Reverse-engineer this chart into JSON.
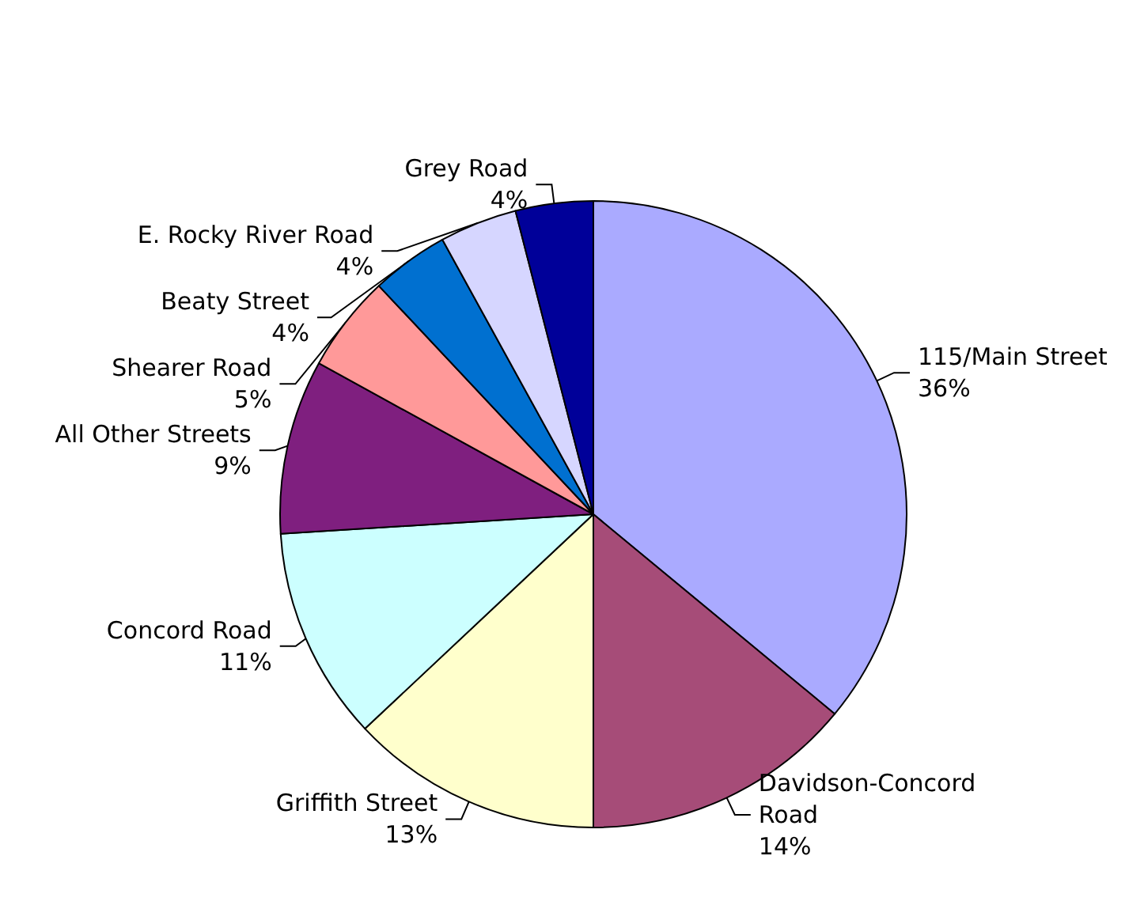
{
  "chart_data": {
    "type": "pie",
    "categories": [
      "115/Main Street",
      "Davidson-Concord Road",
      "Griffith Street",
      "Concord Road",
      "All Other Streets",
      "Shearer Road",
      "Beaty Street",
      "E. Rocky River Road",
      "Grey Road"
    ],
    "values": [
      36,
      14,
      13,
      11,
      9,
      5,
      4,
      4,
      4
    ],
    "value_labels": [
      "36%",
      "14%",
      "13%",
      "11%",
      "9%",
      "5%",
      "4%",
      "4%",
      "4%"
    ],
    "colors": [
      "#aaaaff",
      "#a64c78",
      "#ffffcc",
      "#ccffff",
      "#7f1f7f",
      "#ff9999",
      "#0070d0",
      "#d6d6ff",
      "#000099"
    ],
    "legend": false
  }
}
